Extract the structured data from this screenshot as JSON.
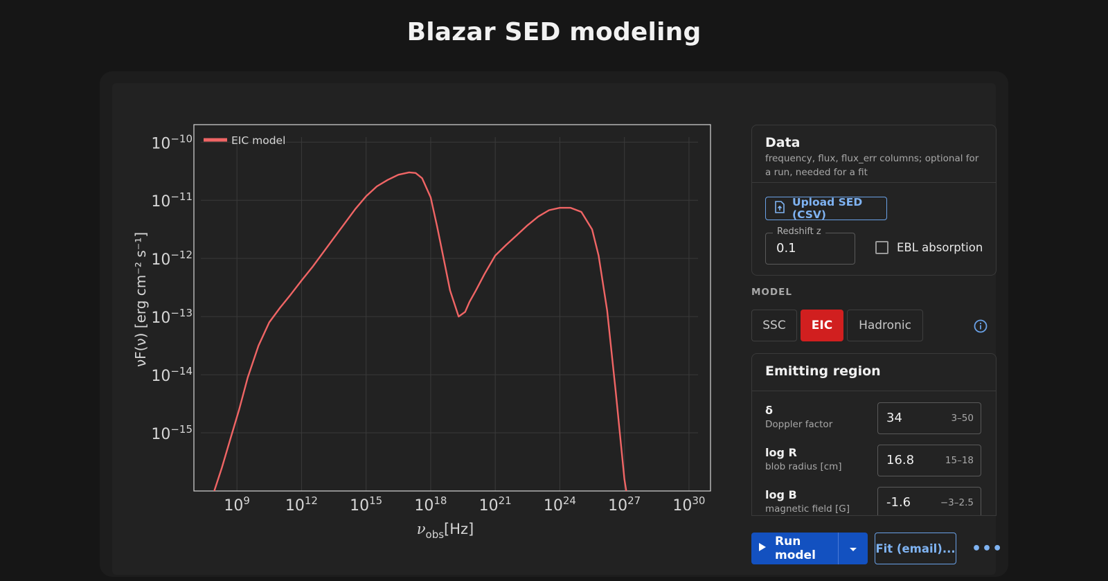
{
  "page": {
    "title": "Blazar SED modeling"
  },
  "chart_data": {
    "type": "line",
    "xscale": "log",
    "yscale": "log",
    "xlabel_main": "ν",
    "xlabel_sub": "obs",
    "xlabel_unit": "[Hz]",
    "ylabel": "νF(ν) [erg cm⁻² s⁻¹]",
    "xlim": [
      10000000.0,
      1e+31
    ],
    "ylim": [
      1e-16,
      2e-10
    ],
    "xticks": [
      9,
      12,
      15,
      18,
      21,
      24,
      27,
      30
    ],
    "yticks": [
      -10,
      -11,
      -12,
      -13,
      -14,
      -15
    ],
    "grid": true,
    "legend_position": "top-left",
    "series": [
      {
        "name": "EIC model",
        "color": "#f06565",
        "log_x": [
          7.9,
          8.3,
          8.7,
          9.1,
          9.5,
          10.0,
          10.5,
          11.0,
          11.5,
          12.0,
          12.5,
          13.0,
          13.5,
          14.0,
          14.5,
          15.0,
          15.5,
          16.0,
          16.5,
          17.0,
          17.3,
          17.6,
          18.0,
          18.3,
          18.6,
          18.9,
          19.3,
          19.6,
          19.8,
          20.1,
          20.5,
          21.0,
          21.5,
          22.0,
          22.5,
          23.0,
          23.5,
          24.0,
          24.5,
          25.0,
          25.5,
          25.8,
          26.2,
          26.6,
          27.0,
          27.3,
          27.6,
          27.9,
          28.1
        ],
        "log_y": [
          -16.05,
          -15.6,
          -15.1,
          -14.6,
          -14.05,
          -13.5,
          -13.1,
          -12.85,
          -12.62,
          -12.38,
          -12.15,
          -11.9,
          -11.65,
          -11.4,
          -11.15,
          -10.93,
          -10.76,
          -10.65,
          -10.56,
          -10.52,
          -10.53,
          -10.62,
          -10.95,
          -11.45,
          -12.0,
          -12.55,
          -13.0,
          -12.92,
          -12.75,
          -12.55,
          -12.27,
          -11.95,
          -11.77,
          -11.6,
          -11.43,
          -11.28,
          -11.17,
          -11.13,
          -11.13,
          -11.2,
          -11.5,
          -11.95,
          -12.9,
          -14.3,
          -15.8,
          -16.5,
          -16.8,
          -16.95,
          -17.0
        ]
      }
    ]
  },
  "data_panel": {
    "title": "Data",
    "subtitle": "frequency, flux, flux_err columns; optional for a run, needed for a fit",
    "upload_label": "Upload SED (CSV)",
    "redshift_label": "Redshift z",
    "redshift_value": "0.1",
    "ebl_label": "EBL absorption",
    "ebl_checked": false
  },
  "model": {
    "label": "MODEL",
    "tabs": [
      "SSC",
      "EIC",
      "Hadronic"
    ],
    "active": "EIC"
  },
  "region": {
    "title": "Emitting region",
    "params": [
      {
        "name": "δ",
        "desc": "Doppler factor",
        "value": "34",
        "range": "3–50"
      },
      {
        "name": "log R",
        "desc": "blob radius [cm]",
        "value": "16.8",
        "range": "15–18"
      },
      {
        "name": "log B",
        "desc": "magnetic field [G]",
        "value": "-1.6",
        "range": "−3–2.5"
      }
    ]
  },
  "actions": {
    "run_label": "Run model",
    "fit_label": "Fit (email)...",
    "more_label": "•••"
  },
  "colors": {
    "accent_red": "#d11f1f",
    "accent_blue": "#1351c0",
    "link_blue": "#7fb3f2"
  }
}
